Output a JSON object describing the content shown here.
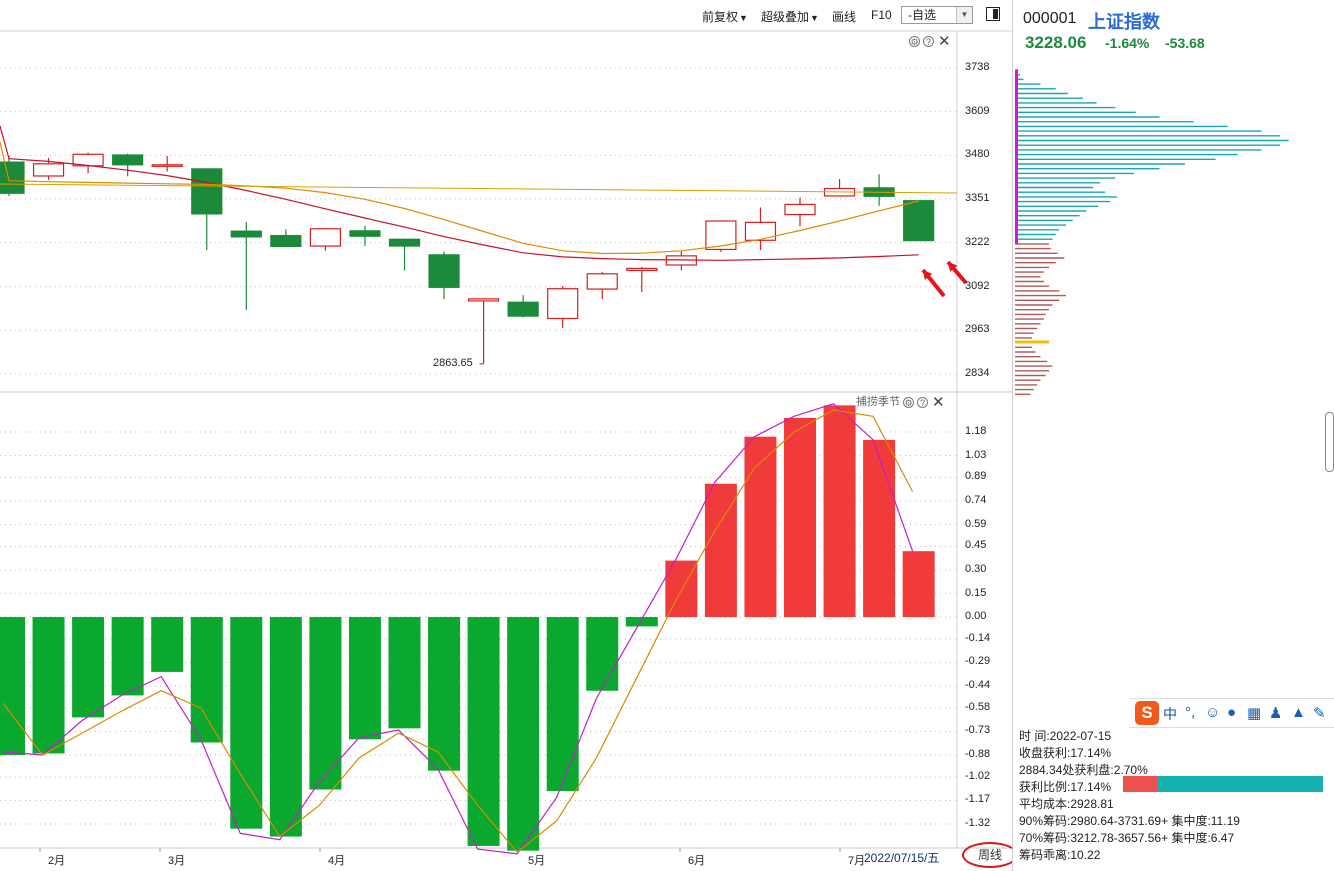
{
  "toolbar": {
    "fuquan": "前复权",
    "overlay": "超级叠加",
    "draw": "画线",
    "f10": "F10",
    "watchlist": "-自选"
  },
  "quote": {
    "code": "000001",
    "name": "上证指数",
    "price": "3228.06",
    "change_pct": "-1.64%",
    "change": "-53.68"
  },
  "main_chart": {
    "y_ticks": [
      "3738",
      "3609",
      "3480",
      "3351",
      "3222",
      "3092",
      "2963",
      "2834"
    ],
    "low_label": "2863.65",
    "candles": [
      {
        "o": 3460,
        "c": 3368,
        "h": 3478,
        "l": 3360
      },
      {
        "o": 3419,
        "c": 3455,
        "h": 3472,
        "l": 3407
      },
      {
        "o": 3449,
        "c": 3483,
        "h": 3488,
        "l": 3427
      },
      {
        "o": 3481,
        "c": 3452,
        "h": 3485,
        "l": 3418
      },
      {
        "o": 3452,
        "c": 3452,
        "h": 3478,
        "l": 3432
      },
      {
        "o": 3440,
        "c": 3307,
        "h": 3440,
        "l": 3200
      },
      {
        "o": 3256,
        "c": 3239,
        "h": 3283,
        "l": 3023
      },
      {
        "o": 3243,
        "c": 3211,
        "h": 3261,
        "l": 3211
      },
      {
        "o": 3212,
        "c": 3263,
        "h": 3265,
        "l": 3198
      },
      {
        "o": 3257,
        "c": 3241,
        "h": 3272,
        "l": 3212
      },
      {
        "o": 3232,
        "c": 3212,
        "h": 3232,
        "l": 3140
      },
      {
        "o": 3186,
        "c": 3090,
        "h": 3196,
        "l": 3055
      },
      {
        "o": 3050,
        "c": 3056,
        "h": 3058,
        "l": 2864
      },
      {
        "o": 3046,
        "c": 3005,
        "h": 3067,
        "l": 3001
      },
      {
        "o": 2998,
        "c": 3086,
        "h": 3094,
        "l": 2970
      },
      {
        "o": 3085,
        "c": 3130,
        "h": 3136,
        "l": 3055
      },
      {
        "o": 3140,
        "c": 3146,
        "h": 3150,
        "l": 3076
      },
      {
        "o": 3156,
        "c": 3183,
        "h": 3196,
        "l": 3140
      },
      {
        "o": 3202,
        "c": 3286,
        "h": 3287,
        "l": 3195
      },
      {
        "o": 3229,
        "c": 3282,
        "h": 3326,
        "l": 3200
      },
      {
        "o": 3305,
        "c": 3335,
        "h": 3355,
        "l": 3270
      },
      {
        "o": 3360,
        "c": 3382,
        "h": 3410,
        "l": 3360
      },
      {
        "o": 3384,
        "c": 3359,
        "h": 3424,
        "l": 3331
      },
      {
        "o": 3346,
        "c": 3228,
        "h": 3346,
        "l": 3228
      }
    ]
  },
  "indicator": {
    "title": "捕捞季节",
    "y_ticks": [
      "1.18",
      "1.03",
      "0.89",
      "0.74",
      "0.59",
      "0.45",
      "0.30",
      "0.15",
      "0.00",
      "-0.14",
      "-0.29",
      "-0.44",
      "-0.58",
      "-0.73",
      "-0.88",
      "-1.02",
      "-1.17",
      "-1.32"
    ],
    "bars": [
      -0.88,
      -0.87,
      -0.64,
      -0.5,
      -0.35,
      -0.8,
      -1.35,
      -1.4,
      -1.1,
      -0.78,
      -0.71,
      -0.98,
      -1.46,
      -1.49,
      -1.11,
      -0.47,
      -0.06,
      0.36,
      0.85,
      1.15,
      1.27,
      1.35,
      1.13,
      0.42
    ]
  },
  "x_labels": [
    "2月",
    "3月",
    "4月",
    "5月",
    "6月",
    "7月"
  ],
  "footer": {
    "date": "2022/07/15/五",
    "period": "周线"
  },
  "chips": {
    "time_label": "时 间:2022-07-15",
    "close_profit": "收盘获利:17.14%",
    "profit_at": "2884.34处获利盘:2.70%",
    "profit_ratio_label": "获利比例:17.14%",
    "profit_ratio_value": 0.1714,
    "avg_cost": "平均成本:2928.81",
    "chip90": "90%筹码:2980.64-3731.69+ 集中度:11.19",
    "chip70": "70%筹码:3212.78-3657.56+ 集中度:6.47",
    "divergence": "筹码乖离:10.22"
  },
  "colors": {
    "up": "#d81e1e",
    "down": "#1b8a3a",
    "ind_up": "#f13b3b",
    "ind_down": "#0aa82e",
    "chip_profit": "#b05a5a",
    "chip_loss": "#1aa5b0",
    "ma_red": "#c8102e",
    "ma_orange": "#e08a00"
  }
}
